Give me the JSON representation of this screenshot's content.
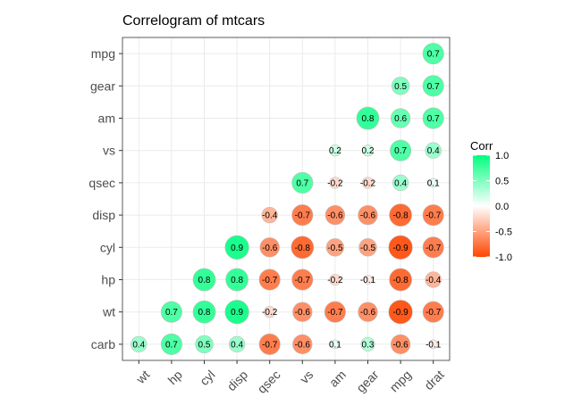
{
  "chart_data": {
    "type": "heatmap",
    "title": "Correlogram of mtcars",
    "xlabel": "",
    "ylabel": "",
    "x_categories": [
      "wt",
      "hp",
      "cyl",
      "disp",
      "qsec",
      "vs",
      "am",
      "gear",
      "mpg",
      "drat"
    ],
    "y_categories": [
      "carb",
      "wt",
      "hp",
      "cyl",
      "disp",
      "qsec",
      "vs",
      "am",
      "gear",
      "mpg"
    ],
    "cells": [
      {
        "x": "drat",
        "y": "mpg",
        "value": 0.7,
        "label": "0.7"
      },
      {
        "x": "mpg",
        "y": "gear",
        "value": 0.5,
        "label": "0.5"
      },
      {
        "x": "drat",
        "y": "gear",
        "value": 0.7,
        "label": "0.7"
      },
      {
        "x": "gear",
        "y": "am",
        "value": 0.8,
        "label": "0.8"
      },
      {
        "x": "mpg",
        "y": "am",
        "value": 0.6,
        "label": "0.6"
      },
      {
        "x": "drat",
        "y": "am",
        "value": 0.7,
        "label": "0.7"
      },
      {
        "x": "am",
        "y": "vs",
        "value": 0.2,
        "label": "0.2"
      },
      {
        "x": "gear",
        "y": "vs",
        "value": 0.2,
        "label": "0.2"
      },
      {
        "x": "mpg",
        "y": "vs",
        "value": 0.7,
        "label": "0.7"
      },
      {
        "x": "drat",
        "y": "vs",
        "value": 0.4,
        "label": "0.4"
      },
      {
        "x": "vs",
        "y": "qsec",
        "value": 0.7,
        "label": "0.7"
      },
      {
        "x": "am",
        "y": "qsec",
        "value": -0.2,
        "label": "-0.2"
      },
      {
        "x": "gear",
        "y": "qsec",
        "value": -0.2,
        "label": "-0.2"
      },
      {
        "x": "mpg",
        "y": "qsec",
        "value": 0.4,
        "label": "0.4"
      },
      {
        "x": "drat",
        "y": "qsec",
        "value": 0.1,
        "label": "0.1"
      },
      {
        "x": "qsec",
        "y": "disp",
        "value": -0.4,
        "label": "-0.4"
      },
      {
        "x": "vs",
        "y": "disp",
        "value": -0.7,
        "label": "-0.7"
      },
      {
        "x": "am",
        "y": "disp",
        "value": -0.6,
        "label": "-0.6"
      },
      {
        "x": "gear",
        "y": "disp",
        "value": -0.6,
        "label": "-0.6"
      },
      {
        "x": "mpg",
        "y": "disp",
        "value": -0.8,
        "label": "-0.8"
      },
      {
        "x": "drat",
        "y": "disp",
        "value": -0.7,
        "label": "-0.7"
      },
      {
        "x": "disp",
        "y": "cyl",
        "value": 0.9,
        "label": "0.9"
      },
      {
        "x": "qsec",
        "y": "cyl",
        "value": -0.6,
        "label": "-0.6"
      },
      {
        "x": "vs",
        "y": "cyl",
        "value": -0.8,
        "label": "-0.8"
      },
      {
        "x": "am",
        "y": "cyl",
        "value": -0.5,
        "label": "-0.5"
      },
      {
        "x": "gear",
        "y": "cyl",
        "value": -0.5,
        "label": "-0.5"
      },
      {
        "x": "mpg",
        "y": "cyl",
        "value": -0.9,
        "label": "-0.9"
      },
      {
        "x": "drat",
        "y": "cyl",
        "value": -0.7,
        "label": "-0.7"
      },
      {
        "x": "cyl",
        "y": "hp",
        "value": 0.8,
        "label": "0.8"
      },
      {
        "x": "disp",
        "y": "hp",
        "value": 0.8,
        "label": "0.8"
      },
      {
        "x": "qsec",
        "y": "hp",
        "value": -0.7,
        "label": "-0.7"
      },
      {
        "x": "vs",
        "y": "hp",
        "value": -0.7,
        "label": "-0.7"
      },
      {
        "x": "am",
        "y": "hp",
        "value": -0.2,
        "label": "-0.2"
      },
      {
        "x": "gear",
        "y": "hp",
        "value": -0.1,
        "label": "-0.1"
      },
      {
        "x": "mpg",
        "y": "hp",
        "value": -0.8,
        "label": "-0.8"
      },
      {
        "x": "drat",
        "y": "hp",
        "value": -0.4,
        "label": "-0.4"
      },
      {
        "x": "hp",
        "y": "wt",
        "value": 0.7,
        "label": "0.7"
      },
      {
        "x": "cyl",
        "y": "wt",
        "value": 0.8,
        "label": "0.8"
      },
      {
        "x": "disp",
        "y": "wt",
        "value": 0.9,
        "label": "0.9"
      },
      {
        "x": "qsec",
        "y": "wt",
        "value": -0.2,
        "label": "-0.2"
      },
      {
        "x": "vs",
        "y": "wt",
        "value": -0.6,
        "label": "-0.6"
      },
      {
        "x": "am",
        "y": "wt",
        "value": -0.7,
        "label": "-0.7"
      },
      {
        "x": "gear",
        "y": "wt",
        "value": -0.6,
        "label": "-0.6"
      },
      {
        "x": "mpg",
        "y": "wt",
        "value": -0.9,
        "label": "-0.9"
      },
      {
        "x": "drat",
        "y": "wt",
        "value": -0.7,
        "label": "-0.7"
      },
      {
        "x": "wt",
        "y": "carb",
        "value": 0.4,
        "label": "0.4"
      },
      {
        "x": "hp",
        "y": "carb",
        "value": 0.7,
        "label": "0.7"
      },
      {
        "x": "cyl",
        "y": "carb",
        "value": 0.5,
        "label": "0.5"
      },
      {
        "x": "disp",
        "y": "carb",
        "value": 0.4,
        "label": "0.4"
      },
      {
        "x": "qsec",
        "y": "carb",
        "value": -0.7,
        "label": "-0.7"
      },
      {
        "x": "vs",
        "y": "carb",
        "value": -0.6,
        "label": "-0.6"
      },
      {
        "x": "am",
        "y": "carb",
        "value": 0.1,
        "label": "0.1"
      },
      {
        "x": "gear",
        "y": "carb",
        "value": 0.3,
        "label": "0.3"
      },
      {
        "x": "mpg",
        "y": "carb",
        "value": -0.6,
        "label": "-0.6"
      },
      {
        "x": "drat",
        "y": "carb",
        "value": -0.1,
        "label": "-0.1"
      }
    ],
    "legend": {
      "title": "Corr",
      "placement": "right",
      "ticks": [
        1.0,
        0.5,
        0.0,
        -0.5,
        -1.0
      ],
      "tick_labels": [
        "1.0",
        "0.5",
        "0.0",
        "-0.5",
        "-1.0"
      ],
      "range": [
        -1,
        1
      ]
    },
    "colors": {
      "high": "#00ff7f",
      "mid": "#ffffff",
      "low": "#ff4500",
      "panel_border": "#333333",
      "grid": "#ebebeb"
    },
    "size_encodes": "abs(value)",
    "grid": true
  }
}
